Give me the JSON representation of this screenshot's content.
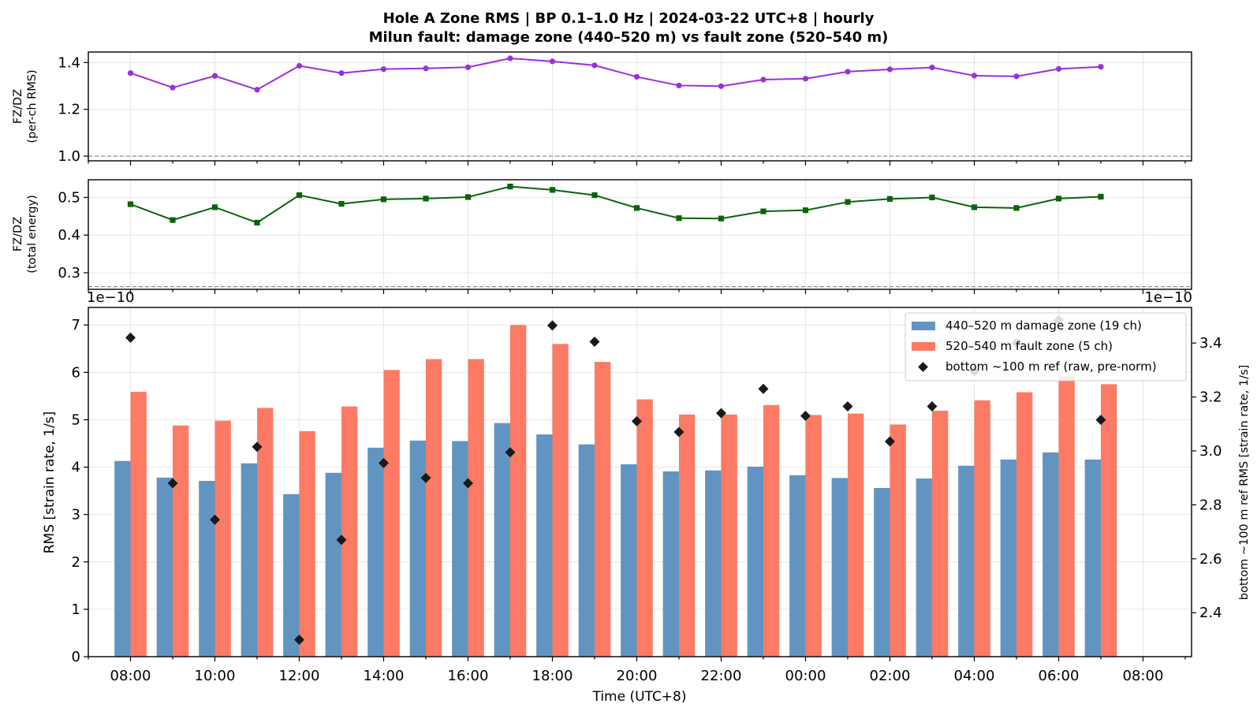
{
  "title_line1": "Hole A Zone RMS  |  BP 0.1–1.0 Hz  |  2024-03-22 UTC+8  |  hourly",
  "title_line2": "Milun fault: damage zone (440–520 m) vs fault zone (520–540 m)",
  "colors": {
    "ratio_rms": "#9b30d9",
    "ratio_energy": "#0a640a",
    "damage_zone": "#6194c1",
    "fault_zone": "#fd7a64",
    "bottom_ref": "#1a1a1a"
  },
  "chart_data": [
    {
      "type": "line",
      "panel": "top",
      "ylabel_line1": "FZ/DZ",
      "ylabel_line2": "(per-ch RMS)",
      "ylim": [
        0.98,
        1.445
      ],
      "yticks": [
        1.0,
        1.2,
        1.4
      ],
      "ytick_labels": [
        "1.0",
        "1.2",
        "1.4"
      ],
      "reference_line": 1.0,
      "grid": true,
      "values": [
        1.355,
        1.293,
        1.343,
        1.284,
        1.386,
        1.355,
        1.372,
        1.375,
        1.38,
        1.418,
        1.405,
        1.388,
        1.339,
        1.302,
        1.299,
        1.327,
        1.331,
        1.361,
        1.371,
        1.379,
        1.344,
        1.341,
        1.373,
        1.382
      ]
    },
    {
      "type": "line",
      "panel": "middle",
      "ylabel_line1": "FZ/DZ",
      "ylabel_line2": "(total energy)",
      "ylim": [
        0.256,
        0.547
      ],
      "yticks": [
        0.3,
        0.4,
        0.5
      ],
      "ytick_labels": [
        "0.3",
        "0.4",
        "0.5"
      ],
      "reference_line": 0.263,
      "grid": true,
      "values": [
        0.482,
        0.44,
        0.474,
        0.433,
        0.506,
        0.483,
        0.495,
        0.497,
        0.501,
        0.529,
        0.52,
        0.506,
        0.472,
        0.445,
        0.444,
        0.463,
        0.466,
        0.488,
        0.496,
        0.5,
        0.474,
        0.472,
        0.497,
        0.502
      ]
    },
    {
      "type": "bar",
      "panel": "bottom",
      "xlabel": "Time (UTC+8)",
      "ylabel": "RMS  [strain rate, 1/s]",
      "y2label": "bottom ~100 m ref RMS  [strain rate, 1/s]",
      "offset_left": "1e−10",
      "offset_right": "1e−10",
      "ylim": [
        0,
        7.37
      ],
      "yticks": [
        0,
        1,
        2,
        3,
        4,
        5,
        6,
        7
      ],
      "ytick_labels": [
        "0",
        "1",
        "2",
        "3",
        "4",
        "5",
        "6",
        "7"
      ],
      "y2lim": [
        2.237,
        3.532
      ],
      "y2ticks": [
        2.4,
        2.6,
        2.8,
        3.0,
        3.2,
        3.4
      ],
      "y2tick_labels": [
        "2.4",
        "2.6",
        "2.8",
        "3.0",
        "3.2",
        "3.4"
      ],
      "xlim_hours": [
        -1.0,
        25.15
      ],
      "xtick_hours": [
        0,
        2,
        4,
        6,
        8,
        10,
        12,
        14,
        16,
        18,
        20,
        22,
        24
      ],
      "xtick_labels": [
        "08:00",
        "10:00",
        "12:00",
        "14:00",
        "16:00",
        "18:00",
        "20:00",
        "22:00",
        "00:00",
        "02:00",
        "04:00",
        "06:00",
        "08:00"
      ],
      "grid": true,
      "legend_location": "top-right",
      "series": [
        {
          "name": "440–520 m  damage zone (19 ch)",
          "kind": "bar",
          "values": [
            4.13,
            3.78,
            3.71,
            4.08,
            3.43,
            3.88,
            4.41,
            4.56,
            4.55,
            4.93,
            4.69,
            4.48,
            4.06,
            3.91,
            3.93,
            4.01,
            3.83,
            3.77,
            3.56,
            3.76,
            4.03,
            4.16,
            4.31,
            4.16
          ]
        },
        {
          "name": "520–540 m  fault zone (5 ch)",
          "kind": "bar",
          "values": [
            5.59,
            4.88,
            4.98,
            5.25,
            4.76,
            5.28,
            6.05,
            6.28,
            6.28,
            7.0,
            6.6,
            6.22,
            5.43,
            5.11,
            5.11,
            5.31,
            5.1,
            5.13,
            4.9,
            5.19,
            5.41,
            5.58,
            5.92,
            5.75
          ]
        },
        {
          "name": "bottom ~100 m ref (raw, pre-norm)",
          "kind": "scatter",
          "axis": "right",
          "values": [
            3.42,
            2.88,
            2.745,
            3.015,
            2.3,
            2.67,
            2.955,
            2.9,
            2.88,
            2.995,
            3.465,
            3.405,
            3.11,
            3.07,
            3.14,
            3.23,
            3.13,
            3.165,
            3.035,
            3.165,
            3.295,
            3.4,
            3.485,
            3.115
          ]
        }
      ]
    }
  ]
}
